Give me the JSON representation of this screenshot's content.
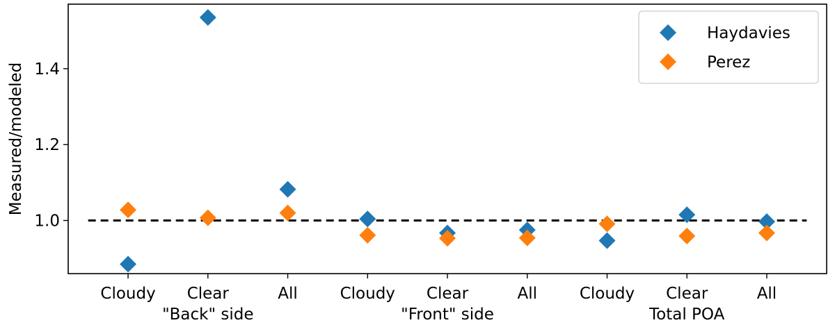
{
  "chart_data": {
    "type": "scatter",
    "ylabel": "Measured/modeled",
    "ylim": [
      0.86,
      1.57
    ],
    "yticks": [
      1.0,
      1.2,
      1.4
    ],
    "ytick_labels": [
      "1.0",
      "1.2",
      "1.4"
    ],
    "xlim": [
      -0.75,
      8.75
    ],
    "x": [
      0,
      1,
      2,
      3,
      4,
      5,
      6,
      7,
      8
    ],
    "categories": [
      "Cloudy",
      "Clear",
      "All",
      "Cloudy",
      "Clear",
      "All",
      "Cloudy",
      "Clear",
      "All"
    ],
    "groups": [
      {
        "label": "\"Back\" side",
        "center": 1
      },
      {
        "label": "\"Front\" side",
        "center": 4
      },
      {
        "label": "Total POA",
        "center": 7
      }
    ],
    "reference_line": {
      "y": 1.0,
      "style": "dashed",
      "color": "#000000"
    },
    "legend_position": "top-right",
    "series": [
      {
        "name": "Haydavies",
        "color": "#1f77b4",
        "marker": "diamond",
        "values": [
          0.885,
          1.535,
          1.082,
          1.004,
          0.967,
          0.975,
          0.947,
          1.015,
          0.997
        ]
      },
      {
        "name": "Perez",
        "color": "#ff7f0e",
        "marker": "diamond",
        "values": [
          1.028,
          1.007,
          1.02,
          0.961,
          0.953,
          0.954,
          0.991,
          0.959,
          0.967
        ]
      }
    ]
  }
}
